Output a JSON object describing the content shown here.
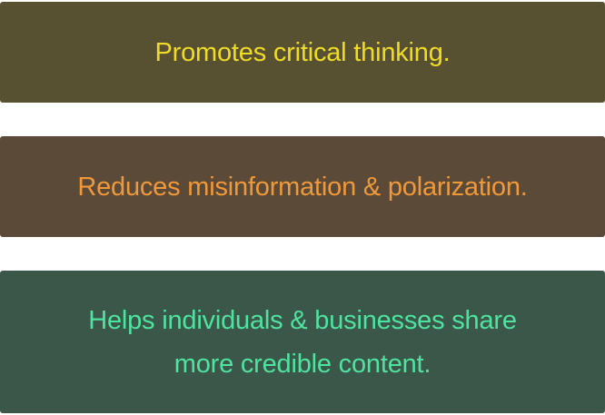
{
  "cards": [
    {
      "lines": [
        "Promotes critical thinking."
      ],
      "background": "#575031",
      "text_color": "#f1dc25"
    },
    {
      "lines": [
        "Reduces misinformation & polarization."
      ],
      "background": "#5c4a38",
      "text_color": "#f0993a"
    },
    {
      "lines": [
        "Helps individuals & businesses share",
        "more credible content."
      ],
      "background": "#3a5749",
      "text_color": "#4fe3a0"
    }
  ]
}
